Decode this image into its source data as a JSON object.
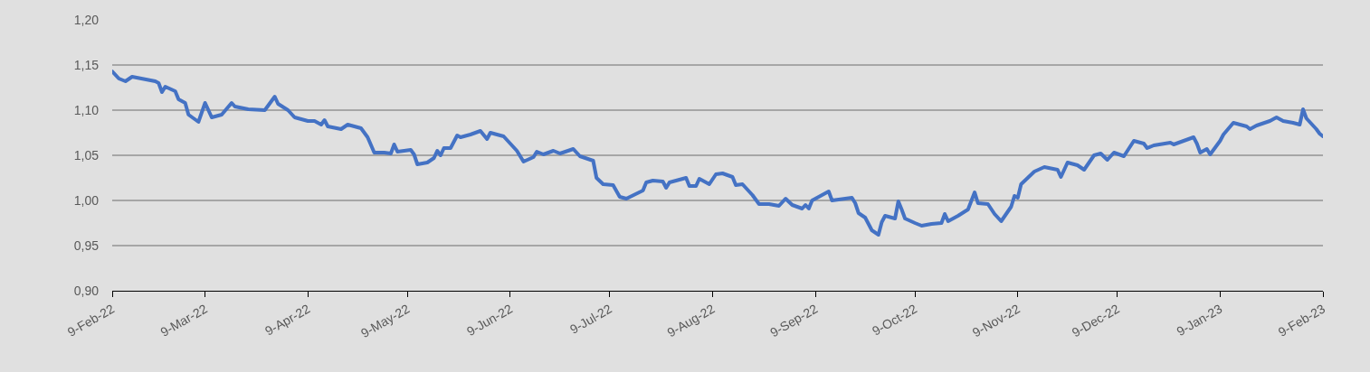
{
  "chart_data": {
    "type": "line",
    "grid": "y",
    "marker": "none",
    "line_style": "solid",
    "xlim": [
      "2022-02-09",
      "2023-02-09"
    ],
    "xticks": [
      {
        "value": "2022-02-09",
        "label": "9-Feb-22"
      },
      {
        "value": "2022-03-09",
        "label": "9-Mar-22"
      },
      {
        "value": "2022-04-09",
        "label": "9-Apr-22"
      },
      {
        "value": "2022-05-09",
        "label": "9-May-22"
      },
      {
        "value": "2022-06-09",
        "label": "9-Jun-22"
      },
      {
        "value": "2022-07-09",
        "label": "9-Jul-22"
      },
      {
        "value": "2022-08-09",
        "label": "9-Aug-22"
      },
      {
        "value": "2022-09-09",
        "label": "9-Sep-22"
      },
      {
        "value": "2022-10-09",
        "label": "9-Oct-22"
      },
      {
        "value": "2022-11-09",
        "label": "9-Nov-22"
      },
      {
        "value": "2022-12-09",
        "label": "9-Dec-22"
      },
      {
        "value": "2023-01-09",
        "label": "9-Jan-23"
      },
      {
        "value": "2023-02-09",
        "label": "9-Feb-23"
      }
    ],
    "ylim": [
      0.9,
      1.2
    ],
    "yticks": [
      {
        "value": 0.9,
        "label": "0,90"
      },
      {
        "value": 0.95,
        "label": "0,95"
      },
      {
        "value": 1.0,
        "label": "1,00"
      },
      {
        "value": 1.05,
        "label": "1,05"
      },
      {
        "value": 1.1,
        "label": "1,10"
      },
      {
        "value": 1.15,
        "label": "1,15"
      },
      {
        "value": 1.2,
        "label": "1,20"
      }
    ],
    "series": [
      {
        "color": "#4472c4",
        "x": [
          "2022-02-09",
          "2022-02-11",
          "2022-02-13",
          "2022-02-15",
          "2022-02-22",
          "2022-02-23",
          "2022-02-24",
          "2022-02-25",
          "2022-02-28",
          "2022-03-01",
          "2022-03-03",
          "2022-03-04",
          "2022-03-07",
          "2022-03-09",
          "2022-03-11",
          "2022-03-14",
          "2022-03-17",
          "2022-03-18",
          "2022-03-22",
          "2022-03-27",
          "2022-03-30",
          "2022-03-31",
          "2022-04-03",
          "2022-04-05",
          "2022-04-09",
          "2022-04-11",
          "2022-04-13",
          "2022-04-14",
          "2022-04-15",
          "2022-04-19",
          "2022-04-21",
          "2022-04-25",
          "2022-04-27",
          "2022-04-29",
          "2022-05-02",
          "2022-05-04",
          "2022-05-05",
          "2022-05-06",
          "2022-05-10",
          "2022-05-11",
          "2022-05-12",
          "2022-05-15",
          "2022-05-17",
          "2022-05-18",
          "2022-05-19",
          "2022-05-20",
          "2022-05-22",
          "2022-05-24",
          "2022-05-25",
          "2022-05-28",
          "2022-05-31",
          "2022-06-02",
          "2022-06-03",
          "2022-06-07",
          "2022-06-09",
          "2022-06-11",
          "2022-06-13",
          "2022-06-16",
          "2022-06-17",
          "2022-06-19",
          "2022-06-22",
          "2022-06-24",
          "2022-06-28",
          "2022-06-30",
          "2022-07-04",
          "2022-07-05",
          "2022-07-07",
          "2022-07-10",
          "2022-07-12",
          "2022-07-14",
          "2022-07-19",
          "2022-07-20",
          "2022-07-22",
          "2022-07-25",
          "2022-07-26",
          "2022-07-27",
          "2022-08-01",
          "2022-08-02",
          "2022-08-04",
          "2022-08-05",
          "2022-08-08",
          "2022-08-10",
          "2022-08-12",
          "2022-08-15",
          "2022-08-16",
          "2022-08-18",
          "2022-08-21",
          "2022-08-23",
          "2022-08-26",
          "2022-08-29",
          "2022-08-31",
          "2022-09-02",
          "2022-09-05",
          "2022-09-06",
          "2022-09-07",
          "2022-09-08",
          "2022-09-13",
          "2022-09-14",
          "2022-09-16",
          "2022-09-20",
          "2022-09-21",
          "2022-09-22",
          "2022-09-24",
          "2022-09-26",
          "2022-09-28",
          "2022-09-29",
          "2022-09-30",
          "2022-10-03",
          "2022-10-04",
          "2022-10-05",
          "2022-10-06",
          "2022-10-09",
          "2022-10-11",
          "2022-10-14",
          "2022-10-17",
          "2022-10-18",
          "2022-10-19",
          "2022-10-22",
          "2022-10-25",
          "2022-10-27",
          "2022-10-28",
          "2022-10-31",
          "2022-11-02",
          "2022-11-04",
          "2022-11-07",
          "2022-11-08",
          "2022-11-09",
          "2022-11-10",
          "2022-11-14",
          "2022-11-17",
          "2022-11-21",
          "2022-11-22",
          "2022-11-24",
          "2022-11-27",
          "2022-11-29",
          "2022-12-02",
          "2022-12-04",
          "2022-12-06",
          "2022-12-08",
          "2022-12-11",
          "2022-12-14",
          "2022-12-17",
          "2022-12-18",
          "2022-12-20",
          "2022-12-25",
          "2022-12-26",
          "2023-01-01",
          "2023-01-02",
          "2023-01-03",
          "2023-01-05",
          "2023-01-06",
          "2023-01-09",
          "2023-01-10",
          "2023-01-13",
          "2023-01-17",
          "2023-01-18",
          "2023-01-20",
          "2023-01-24",
          "2023-01-26",
          "2023-01-28",
          "2023-01-31",
          "2023-02-02",
          "2023-02-03",
          "2023-02-04",
          "2023-02-07",
          "2023-02-08",
          "2023-02-09"
        ],
        "values": [
          1.143,
          1.135,
          1.132,
          1.137,
          1.132,
          1.13,
          1.12,
          1.126,
          1.121,
          1.112,
          1.108,
          1.095,
          1.087,
          1.108,
          1.092,
          1.095,
          1.108,
          1.104,
          1.101,
          1.1,
          1.115,
          1.107,
          1.1,
          1.092,
          1.088,
          1.088,
          1.084,
          1.089,
          1.082,
          1.079,
          1.084,
          1.08,
          1.07,
          1.053,
          1.053,
          1.052,
          1.062,
          1.054,
          1.056,
          1.051,
          1.04,
          1.042,
          1.047,
          1.055,
          1.05,
          1.058,
          1.058,
          1.072,
          1.07,
          1.073,
          1.077,
          1.068,
          1.075,
          1.071,
          1.063,
          1.055,
          1.043,
          1.048,
          1.054,
          1.051,
          1.055,
          1.052,
          1.057,
          1.049,
          1.044,
          1.025,
          1.018,
          1.017,
          1.004,
          1.002,
          1.011,
          1.02,
          1.022,
          1.021,
          1.014,
          1.02,
          1.025,
          1.016,
          1.016,
          1.024,
          1.018,
          1.029,
          1.03,
          1.026,
          1.017,
          1.018,
          1.006,
          0.996,
          0.996,
          0.994,
          1.002,
          0.995,
          0.991,
          0.995,
          0.991,
          1.0,
          1.01,
          1.0,
          1.001,
          1.003,
          0.997,
          0.986,
          0.981,
          0.967,
          0.962,
          0.976,
          0.983,
          0.98,
          0.999,
          0.99,
          0.98,
          0.975,
          0.972,
          0.974,
          0.975,
          0.985,
          0.977,
          0.983,
          0.99,
          1.009,
          0.997,
          0.996,
          0.985,
          0.977,
          0.993,
          1.005,
          1.003,
          1.018,
          1.032,
          1.037,
          1.034,
          1.026,
          1.042,
          1.039,
          1.034,
          1.05,
          1.052,
          1.045,
          1.053,
          1.049,
          1.066,
          1.063,
          1.058,
          1.061,
          1.064,
          1.062,
          1.07,
          1.063,
          1.053,
          1.057,
          1.051,
          1.066,
          1.073,
          1.086,
          1.082,
          1.079,
          1.083,
          1.088,
          1.092,
          1.088,
          1.086,
          1.084,
          1.101,
          1.091,
          1.079,
          1.074,
          1.071
        ]
      }
    ]
  }
}
